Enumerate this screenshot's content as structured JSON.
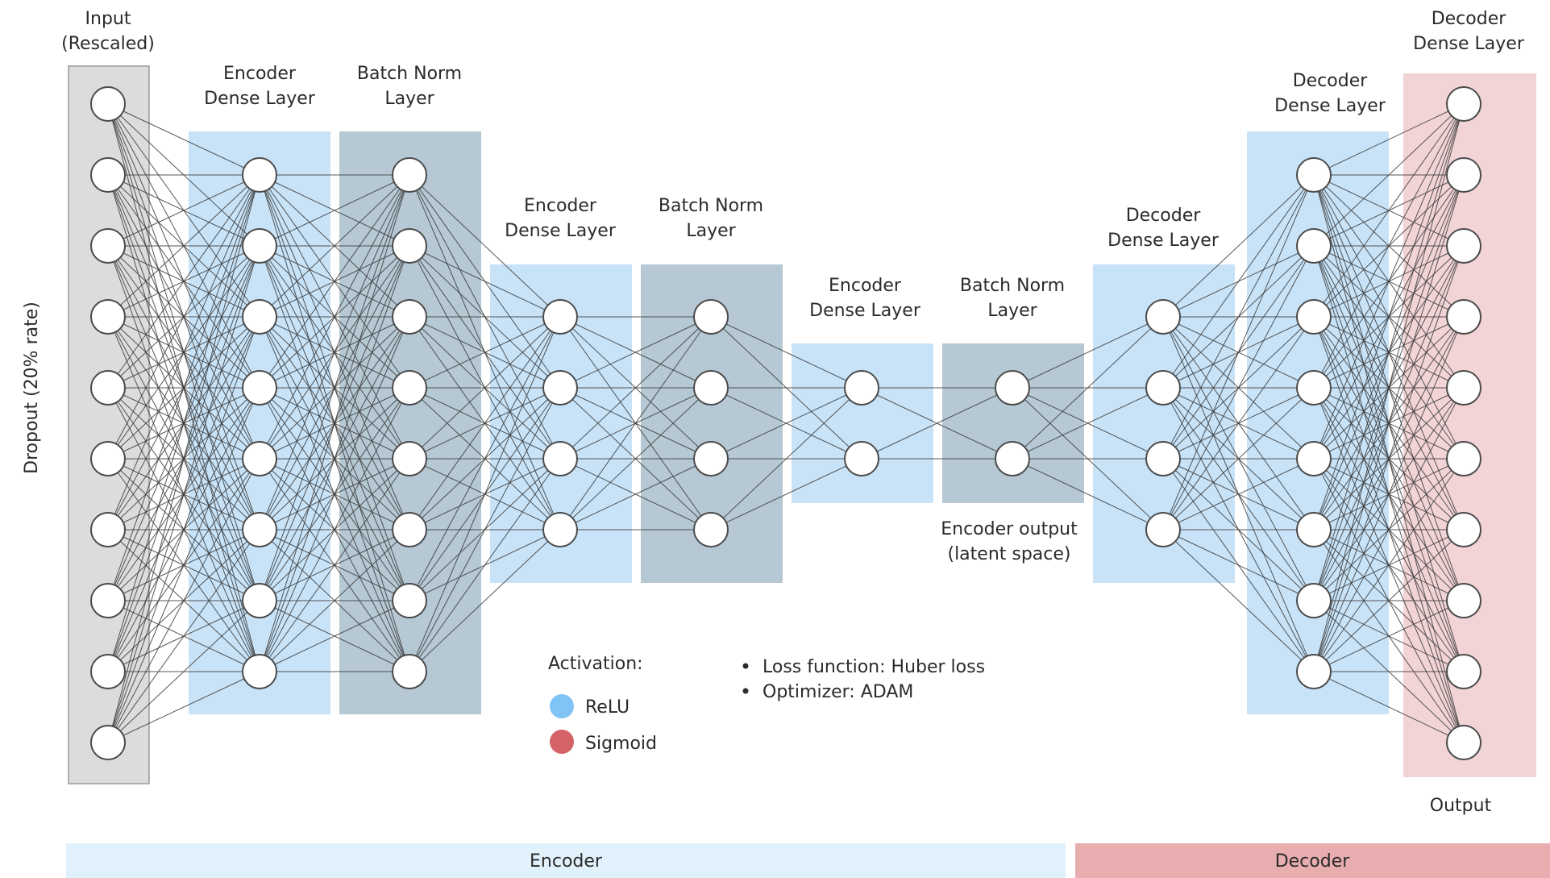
{
  "layers": [
    {
      "label": [
        "Input",
        "(Rescaled)"
      ],
      "neurons": 10,
      "fill": "#dcdcdc",
      "edge": "#9a9a9a"
    },
    {
      "label": [
        "Encoder",
        "Dense Layer"
      ],
      "neurons": 8,
      "fill": "#c8e3f8",
      "edge": ""
    },
    {
      "label": [
        "Batch Norm",
        "Layer"
      ],
      "neurons": 8,
      "fill": "#b5c8d4",
      "edge": ""
    },
    {
      "label": [
        "Encoder",
        "Dense Layer"
      ],
      "neurons": 4,
      "fill": "#c8e3f8",
      "edge": ""
    },
    {
      "label": [
        "Batch Norm",
        "Layer"
      ],
      "neurons": 4,
      "fill": "#b5c8d4",
      "edge": ""
    },
    {
      "label": [
        "Encoder",
        "Dense Layer"
      ],
      "neurons": 2,
      "fill": "#c8e3f8",
      "edge": ""
    },
    {
      "label": [
        "Batch Norm",
        "Layer"
      ],
      "neurons": 2,
      "fill": "#b5c8d4",
      "edge": ""
    },
    {
      "label": [
        "Decoder",
        "Dense Layer"
      ],
      "neurons": 4,
      "fill": "#c8e3f8",
      "edge": ""
    },
    {
      "label": [
        "Decoder",
        "Dense Layer"
      ],
      "neurons": 8,
      "fill": "#c8e3f8",
      "edge": ""
    },
    {
      "label": [
        "Decoder",
        "Dense Layer"
      ],
      "neurons": 10,
      "fill": "#f2d4d6",
      "edge": ""
    }
  ],
  "dropout_label": "Dropout (20% rate)",
  "latent_label": [
    "Encoder output",
    "(latent space)"
  ],
  "output_label": "Output",
  "activation": {
    "title": "Activation:",
    "items": [
      {
        "label": "ReLU",
        "color": "#7fc4f5"
      },
      {
        "label": "Sigmoid",
        "color": "#d46266"
      }
    ]
  },
  "notes": [
    "Loss function: Huber loss",
    "Optimizer: ADAM"
  ],
  "bands": [
    {
      "label": "Encoder",
      "color": "#e0f1fc"
    },
    {
      "label": "Decoder",
      "color": "#e8aeaf"
    }
  ],
  "colors": {
    "line": "#3a3a3a",
    "node_stroke": "#4a4a4a",
    "node_fill": "#ffffff"
  }
}
